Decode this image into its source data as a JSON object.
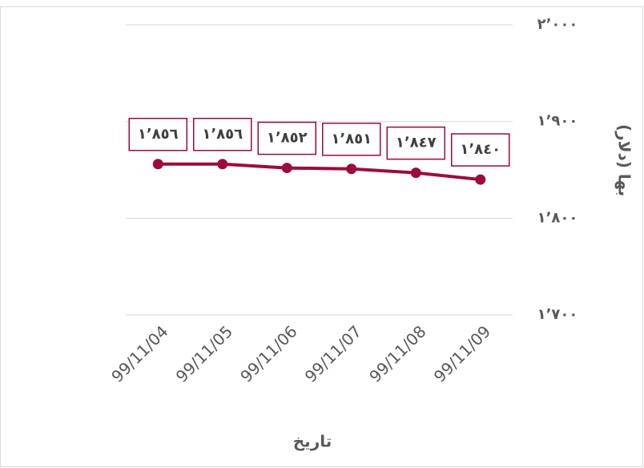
{
  "chart_data": {
    "type": "line",
    "x_label": "تاریخ",
    "y_label": "بها (دلار)",
    "categories": [
      "99/11/04",
      "99/11/05",
      "99/11/06",
      "99/11/07",
      "99/11/08",
      "99/11/09"
    ],
    "series": [
      {
        "name": "بها",
        "color": "#9b0c3c",
        "values": [
          1856,
          1856,
          1852,
          1851,
          1847,
          1840
        ],
        "value_labels": [
          "١٬٨٥٦",
          "١٬٨٥٦",
          "١٬٨٥٢",
          "١٬٨٥١",
          "١٬٨٤٧",
          "١٬٨٤٠"
        ]
      }
    ],
    "ylim": [
      1700,
      2000
    ],
    "yticks": [
      {
        "value": 1700,
        "label": "١٬٧٠٠"
      },
      {
        "value": 1800,
        "label": "١٬٨٠٠"
      },
      {
        "value": 1900,
        "label": "١٬٩٠٠"
      },
      {
        "value": 2000,
        "label": "٢٬٠٠٠"
      }
    ],
    "y_axis_side": "right",
    "grid": true
  }
}
